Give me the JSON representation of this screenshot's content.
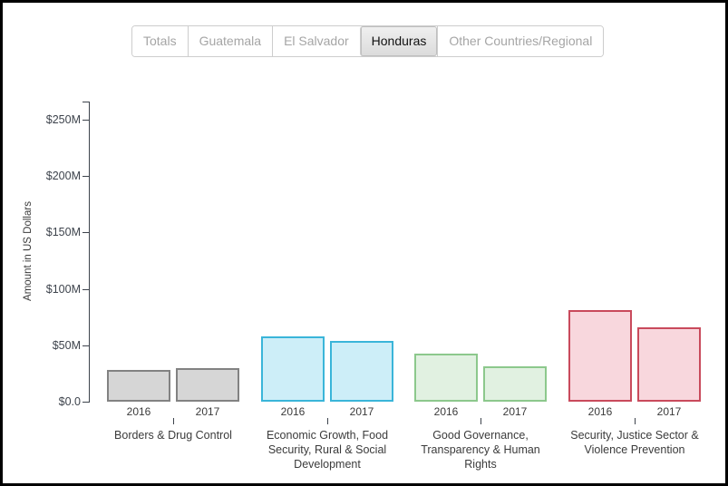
{
  "tabs": {
    "items": [
      {
        "label": "Totals",
        "selected": false
      },
      {
        "label": "Guatemala",
        "selected": false
      },
      {
        "label": "El Salvador",
        "selected": false
      },
      {
        "label": "Honduras",
        "selected": true
      },
      {
        "label": "Other Countries/Regional",
        "selected": false
      }
    ]
  },
  "chart_data": {
    "type": "bar",
    "title": "",
    "xlabel": "",
    "ylabel": "Amount in US Dollars",
    "unit": "millions of US dollars",
    "grid": false,
    "legend_position": "none",
    "ylim_musd": [
      0,
      266
    ],
    "y_axis": {
      "ticks": [
        {
          "label": "$0.0",
          "value_musd": 0
        },
        {
          "label": "$50M",
          "value_musd": 50
        },
        {
          "label": "$100M",
          "value_musd": 100
        },
        {
          "label": "$150M",
          "value_musd": 150
        },
        {
          "label": "$200M",
          "value_musd": 200
        },
        {
          "label": "$250M",
          "value_musd": 250
        }
      ]
    },
    "bar_years": [
      "2016",
      "2017"
    ],
    "groups": [
      {
        "label": "Borders & Drug Control",
        "fill": "#d6d6d6",
        "stroke": "#828282",
        "bars": [
          {
            "year": "2016",
            "value_musd": 28
          },
          {
            "year": "2017",
            "value_musd": 30
          }
        ]
      },
      {
        "label": "Economic Growth, Food Security, Rural & Social Development",
        "fill": "#cdeef8",
        "stroke": "#3ab5d9",
        "bars": [
          {
            "year": "2016",
            "value_musd": 58
          },
          {
            "year": "2017",
            "value_musd": 54
          }
        ]
      },
      {
        "label": "Good Governance, Transparency & Human Rights",
        "fill": "#e1f1e1",
        "stroke": "#8cc88c",
        "bars": [
          {
            "year": "2016",
            "value_musd": 43
          },
          {
            "year": "2017",
            "value_musd": 31
          }
        ]
      },
      {
        "label": "Security, Justice Sector & Violence Prevention",
        "fill": "#f8d7dd",
        "stroke": "#c94a5c",
        "bars": [
          {
            "year": "2016",
            "value_musd": 81
          },
          {
            "year": "2017",
            "value_musd": 66
          }
        ]
      }
    ]
  }
}
